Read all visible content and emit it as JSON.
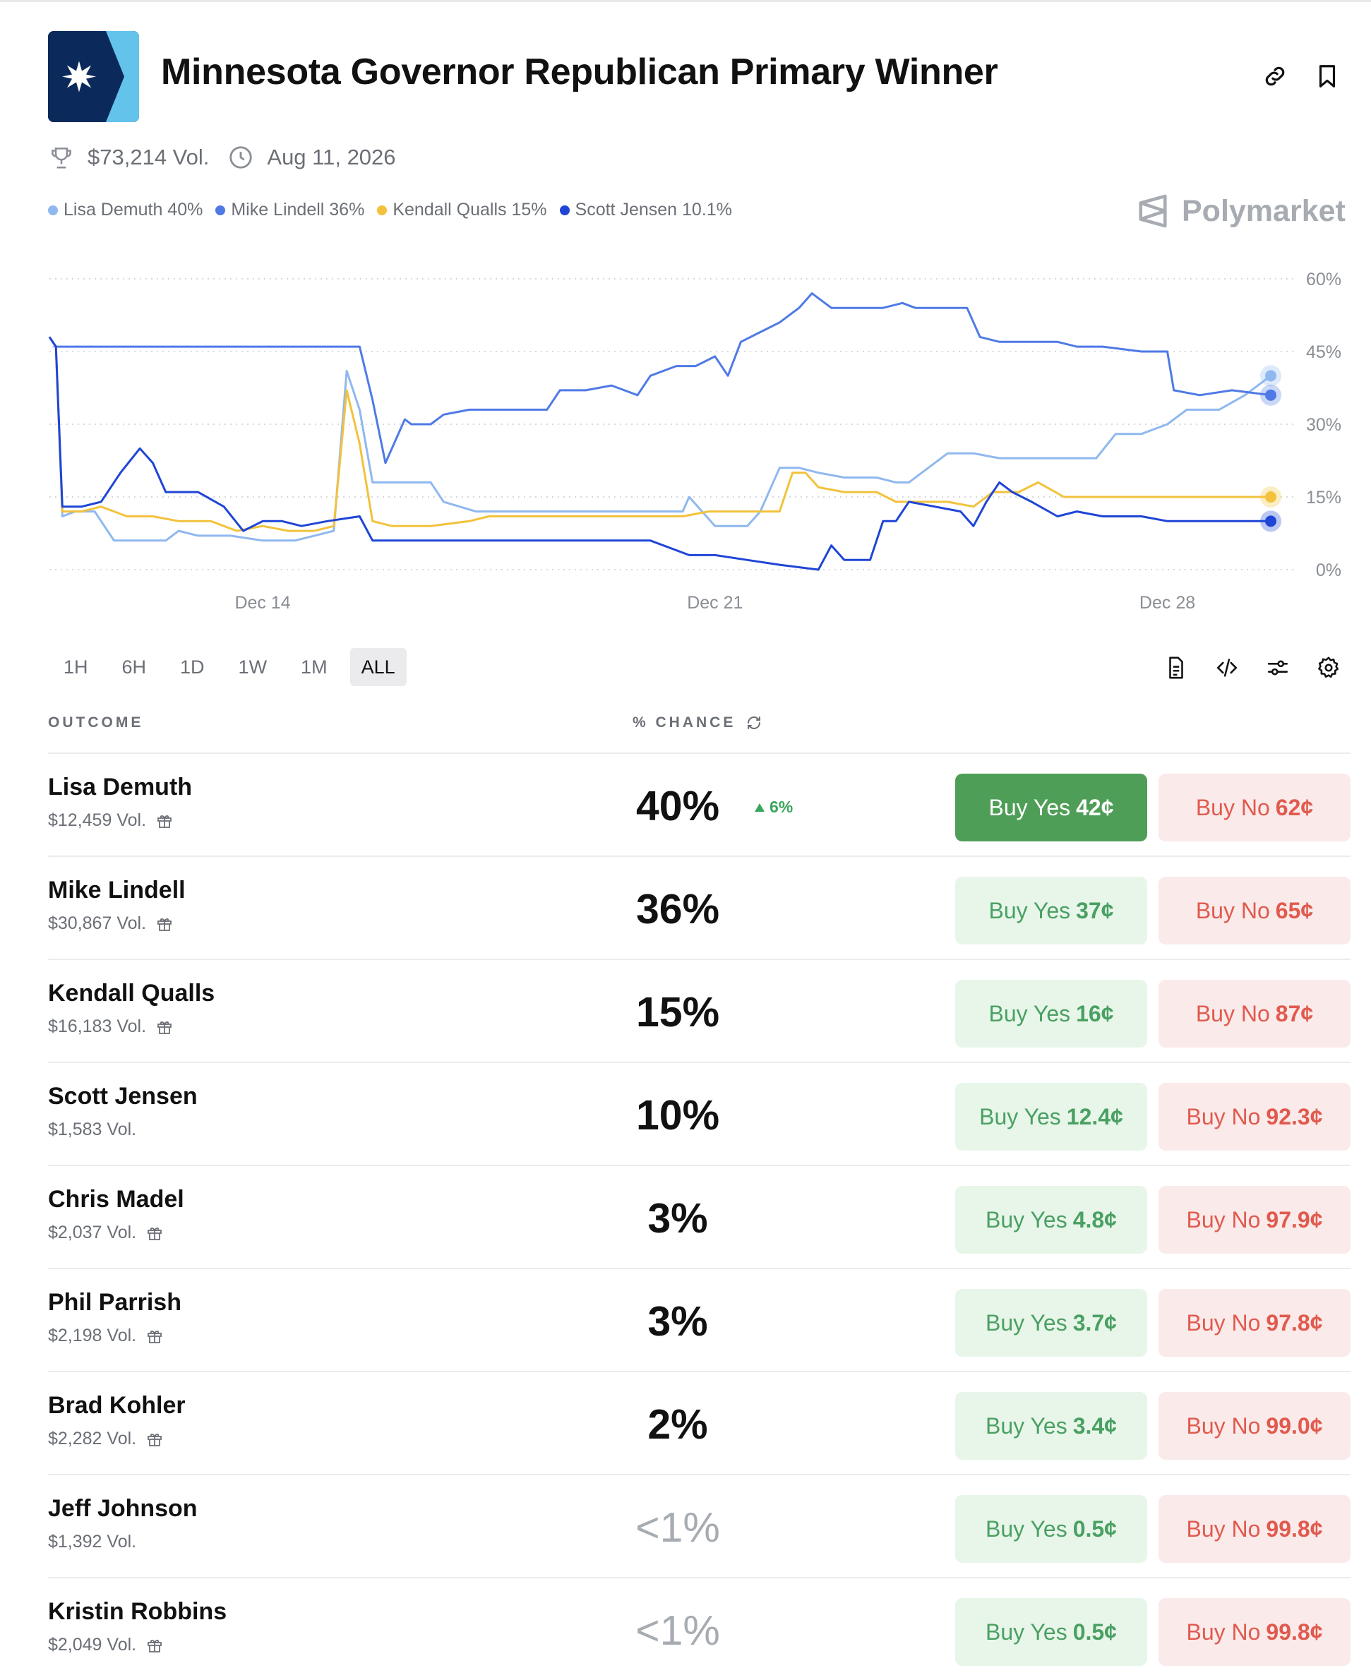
{
  "market": {
    "title": "Minnesota Governor Republican Primary Winner",
    "volume": "$73,214 Vol.",
    "end_date": "Aug 11, 2026",
    "brand": "Polymarket"
  },
  "legend": [
    {
      "label": "Lisa Demuth 40%",
      "color": "#8fb8ef"
    },
    {
      "label": "Mike Lindell 36%",
      "color": "#4f7ae6"
    },
    {
      "label": "Kendall Qualls 15%",
      "color": "#f2c23c"
    },
    {
      "label": "Scott Jensen 10.1%",
      "color": "#1f45d6"
    }
  ],
  "ranges": [
    "1H",
    "6H",
    "1D",
    "1W",
    "1M",
    "ALL"
  ],
  "active_range": "ALL",
  "table": {
    "col_outcome": "OUTCOME",
    "col_chance": "% CHANCE"
  },
  "outcomes": [
    {
      "name": "Lisa Demuth",
      "vol": "$12,459 Vol.",
      "gift": true,
      "chance": "40%",
      "delta": "6%",
      "yes_label": "Buy Yes",
      "yes_price": "42¢",
      "no_label": "Buy No",
      "no_price": "62¢"
    },
    {
      "name": "Mike Lindell",
      "vol": "$30,867 Vol.",
      "gift": true,
      "chance": "36%",
      "yes_label": "Buy Yes",
      "yes_price": "37¢",
      "no_label": "Buy No",
      "no_price": "65¢"
    },
    {
      "name": "Kendall Qualls",
      "vol": "$16,183 Vol.",
      "gift": true,
      "chance": "15%",
      "yes_label": "Buy Yes",
      "yes_price": "16¢",
      "no_label": "Buy No",
      "no_price": "87¢"
    },
    {
      "name": "Scott Jensen",
      "vol": "$1,583 Vol.",
      "gift": false,
      "chance": "10%",
      "yes_label": "Buy Yes",
      "yes_price": "12.4¢",
      "no_label": "Buy No",
      "no_price": "92.3¢"
    },
    {
      "name": "Chris Madel",
      "vol": "$2,037 Vol.",
      "gift": true,
      "chance": "3%",
      "yes_label": "Buy Yes",
      "yes_price": "4.8¢",
      "no_label": "Buy No",
      "no_price": "97.9¢"
    },
    {
      "name": "Phil Parrish",
      "vol": "$2,198 Vol.",
      "gift": true,
      "chance": "3%",
      "yes_label": "Buy Yes",
      "yes_price": "3.7¢",
      "no_label": "Buy No",
      "no_price": "97.8¢"
    },
    {
      "name": "Brad Kohler",
      "vol": "$2,282 Vol.",
      "gift": true,
      "chance": "2%",
      "yes_label": "Buy Yes",
      "yes_price": "3.4¢",
      "no_label": "Buy No",
      "no_price": "99.0¢"
    },
    {
      "name": "Jeff Johnson",
      "vol": "$1,392 Vol.",
      "gift": false,
      "chance": "<1%",
      "faded": true,
      "yes_label": "Buy Yes",
      "yes_price": "0.5¢",
      "no_label": "Buy No",
      "no_price": "99.8¢"
    },
    {
      "name": "Kristin Robbins",
      "vol": "$2,049 Vol.",
      "gift": true,
      "chance": "<1%",
      "faded": true,
      "yes_label": "Buy Yes",
      "yes_price": "0.5¢",
      "no_label": "Buy No",
      "no_price": "99.8¢"
    }
  ],
  "chart_data": {
    "type": "line",
    "x_ticks": [
      "Dec 14",
      "Dec 21",
      "Dec 28"
    ],
    "x_tick_days": [
      14,
      21,
      28
    ],
    "xlim": [
      10.7,
      29.6
    ],
    "ylim": [
      0,
      60
    ],
    "y_ticks": [
      0,
      15,
      30,
      45,
      60
    ],
    "y_tick_labels": [
      "0%",
      "15%",
      "30%",
      "45%",
      "60%"
    ],
    "grid": true,
    "series": [
      {
        "name": "Lisa Demuth",
        "color": "#8fb8ef",
        "points": [
          [
            10.7,
            48
          ],
          [
            10.8,
            46
          ],
          [
            10.9,
            11
          ],
          [
            11.1,
            12
          ],
          [
            11.4,
            12
          ],
          [
            11.7,
            6
          ],
          [
            12.3,
            6
          ],
          [
            12.5,
            6
          ],
          [
            12.7,
            8
          ],
          [
            13.0,
            7
          ],
          [
            13.5,
            7
          ],
          [
            14.0,
            6
          ],
          [
            14.5,
            6
          ],
          [
            14.8,
            7
          ],
          [
            15.1,
            8
          ],
          [
            15.3,
            41
          ],
          [
            15.5,
            33
          ],
          [
            15.7,
            18
          ],
          [
            16.0,
            18
          ],
          [
            16.6,
            18
          ],
          [
            16.8,
            14
          ],
          [
            17.3,
            12
          ],
          [
            18.0,
            12
          ],
          [
            19.0,
            12
          ],
          [
            20.0,
            12
          ],
          [
            20.5,
            12
          ],
          [
            20.6,
            15
          ],
          [
            20.8,
            12
          ],
          [
            21.0,
            9
          ],
          [
            21.5,
            9
          ],
          [
            21.7,
            12
          ],
          [
            22.0,
            21
          ],
          [
            22.3,
            21
          ],
          [
            22.6,
            20
          ],
          [
            23.0,
            19
          ],
          [
            23.5,
            19
          ],
          [
            23.8,
            18
          ],
          [
            24.0,
            18
          ],
          [
            24.6,
            24
          ],
          [
            25.0,
            24
          ],
          [
            25.4,
            23
          ],
          [
            26.0,
            23
          ],
          [
            26.9,
            23
          ],
          [
            27.2,
            28
          ],
          [
            27.6,
            28
          ],
          [
            28.0,
            30
          ],
          [
            28.3,
            33
          ],
          [
            28.8,
            33
          ],
          [
            29.2,
            36
          ],
          [
            29.6,
            40
          ]
        ]
      },
      {
        "name": "Mike Lindell",
        "color": "#4f7ae6",
        "points": [
          [
            10.7,
            48
          ],
          [
            10.8,
            46
          ],
          [
            11.1,
            46
          ],
          [
            12.0,
            46
          ],
          [
            13.0,
            46
          ],
          [
            14.0,
            46
          ],
          [
            15.1,
            46
          ],
          [
            15.3,
            46
          ],
          [
            15.5,
            46
          ],
          [
            15.7,
            35
          ],
          [
            15.9,
            22
          ],
          [
            16.2,
            31
          ],
          [
            16.3,
            30
          ],
          [
            16.6,
            30
          ],
          [
            16.8,
            32
          ],
          [
            17.2,
            33
          ],
          [
            17.8,
            33
          ],
          [
            18.4,
            33
          ],
          [
            18.6,
            37
          ],
          [
            19.0,
            37
          ],
          [
            19.4,
            38
          ],
          [
            19.8,
            36
          ],
          [
            20.0,
            40
          ],
          [
            20.4,
            42
          ],
          [
            20.7,
            42
          ],
          [
            21.0,
            44
          ],
          [
            21.2,
            40
          ],
          [
            21.4,
            47
          ],
          [
            21.7,
            49
          ],
          [
            22.0,
            51
          ],
          [
            22.3,
            54
          ],
          [
            22.5,
            57
          ],
          [
            22.8,
            54
          ],
          [
            23.2,
            54
          ],
          [
            23.6,
            54
          ],
          [
            23.9,
            55
          ],
          [
            24.1,
            54
          ],
          [
            24.6,
            54
          ],
          [
            24.9,
            54
          ],
          [
            25.1,
            48
          ],
          [
            25.4,
            47
          ],
          [
            25.8,
            47
          ],
          [
            26.3,
            47
          ],
          [
            26.6,
            46
          ],
          [
            27.0,
            46
          ],
          [
            27.6,
            45
          ],
          [
            28.0,
            45
          ],
          [
            28.1,
            37
          ],
          [
            28.5,
            36
          ],
          [
            29.0,
            37
          ],
          [
            29.6,
            36
          ]
        ]
      },
      {
        "name": "Kendall Qualls",
        "color": "#f2c23c",
        "points": [
          [
            10.7,
            48
          ],
          [
            10.8,
            46
          ],
          [
            10.9,
            12
          ],
          [
            11.2,
            12
          ],
          [
            11.5,
            13
          ],
          [
            11.9,
            11
          ],
          [
            12.3,
            11
          ],
          [
            12.7,
            10
          ],
          [
            13.2,
            10
          ],
          [
            13.6,
            8
          ],
          [
            14.0,
            9
          ],
          [
            14.4,
            8
          ],
          [
            14.8,
            8
          ],
          [
            15.1,
            9
          ],
          [
            15.3,
            37
          ],
          [
            15.5,
            26
          ],
          [
            15.7,
            10
          ],
          [
            16.0,
            9
          ],
          [
            16.6,
            9
          ],
          [
            17.2,
            10
          ],
          [
            17.5,
            11
          ],
          [
            18.0,
            11
          ],
          [
            19.0,
            11
          ],
          [
            20.0,
            11
          ],
          [
            20.5,
            11
          ],
          [
            20.9,
            12
          ],
          [
            21.5,
            12
          ],
          [
            22.0,
            12
          ],
          [
            22.2,
            20
          ],
          [
            22.4,
            20
          ],
          [
            22.6,
            17
          ],
          [
            23.0,
            16
          ],
          [
            23.5,
            16
          ],
          [
            23.8,
            14
          ],
          [
            24.0,
            14
          ],
          [
            24.6,
            14
          ],
          [
            25.0,
            13
          ],
          [
            25.3,
            16
          ],
          [
            25.7,
            16
          ],
          [
            26.0,
            18
          ],
          [
            26.4,
            15
          ],
          [
            26.8,
            15
          ],
          [
            27.2,
            15
          ],
          [
            27.6,
            15
          ],
          [
            28.0,
            15
          ],
          [
            29.0,
            15
          ],
          [
            29.6,
            15
          ]
        ]
      },
      {
        "name": "Scott Jensen",
        "color": "#1f45d6",
        "points": [
          [
            10.7,
            48
          ],
          [
            10.8,
            46
          ],
          [
            10.9,
            13
          ],
          [
            11.2,
            13
          ],
          [
            11.5,
            14
          ],
          [
            11.8,
            20
          ],
          [
            12.1,
            25
          ],
          [
            12.3,
            22
          ],
          [
            12.5,
            16
          ],
          [
            13.0,
            16
          ],
          [
            13.4,
            13
          ],
          [
            13.7,
            8
          ],
          [
            14.0,
            10
          ],
          [
            14.3,
            10
          ],
          [
            14.6,
            9
          ],
          [
            15.0,
            10
          ],
          [
            15.5,
            11
          ],
          [
            15.7,
            6
          ],
          [
            16.0,
            6
          ],
          [
            16.8,
            6
          ],
          [
            17.4,
            6
          ],
          [
            18.0,
            6
          ],
          [
            19.0,
            6
          ],
          [
            20.0,
            6
          ],
          [
            20.6,
            3
          ],
          [
            21.0,
            3
          ],
          [
            21.5,
            2
          ],
          [
            22.0,
            1
          ],
          [
            22.6,
            0
          ],
          [
            22.8,
            5
          ],
          [
            23.0,
            2
          ],
          [
            23.4,
            2
          ],
          [
            23.6,
            10
          ],
          [
            23.8,
            10
          ],
          [
            24.0,
            14
          ],
          [
            24.4,
            13
          ],
          [
            24.8,
            12
          ],
          [
            25.0,
            9
          ],
          [
            25.2,
            14
          ],
          [
            25.4,
            18
          ],
          [
            25.6,
            16
          ],
          [
            25.9,
            14
          ],
          [
            26.3,
            11
          ],
          [
            26.6,
            12
          ],
          [
            27.0,
            11
          ],
          [
            27.6,
            11
          ],
          [
            28.0,
            10
          ],
          [
            29.0,
            10
          ],
          [
            29.6,
            10
          ]
        ]
      }
    ]
  }
}
